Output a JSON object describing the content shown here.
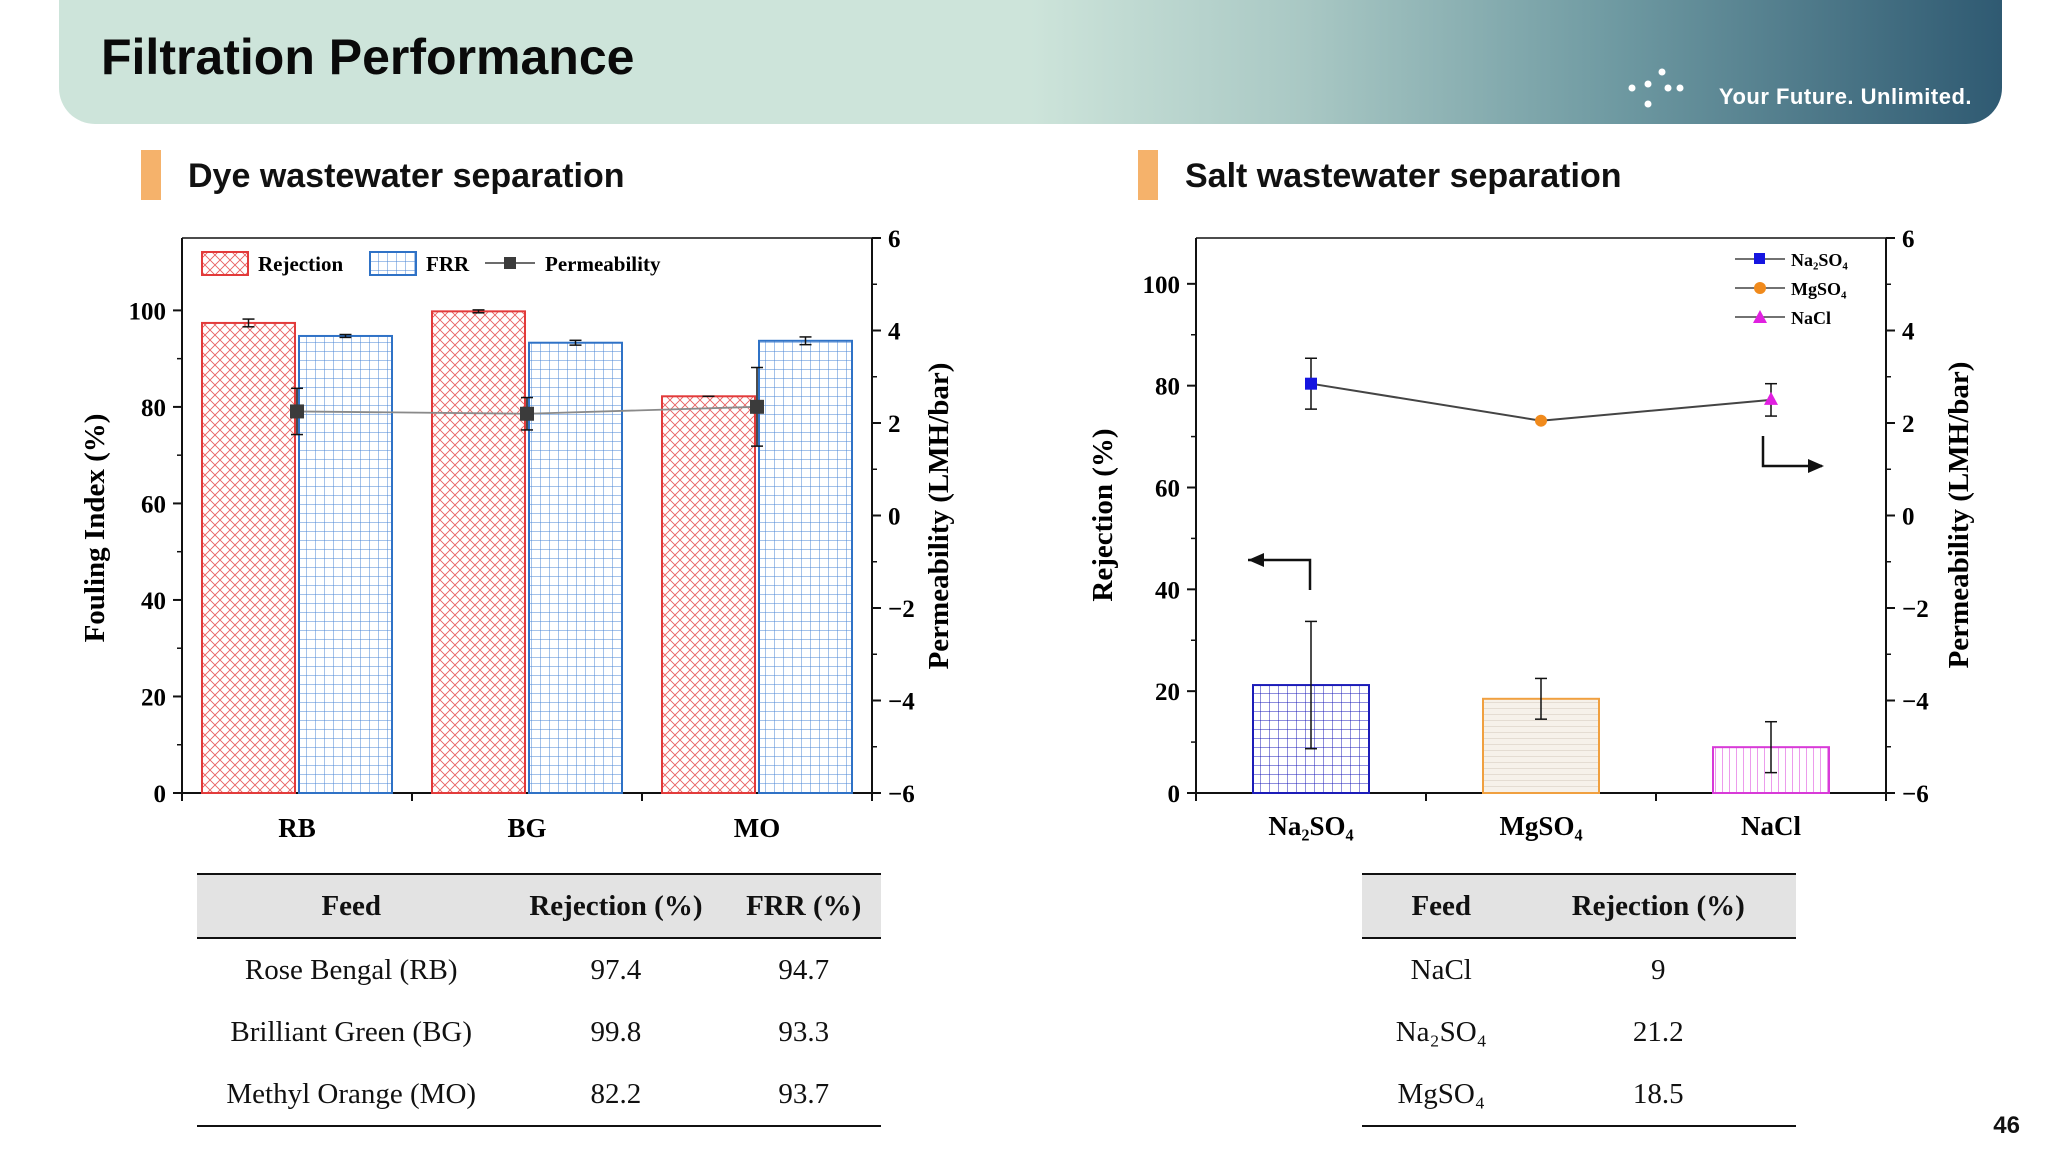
{
  "page": {
    "title": "Filtration Performance",
    "brand": "Your Future. Unlimited.",
    "page_number": "46"
  },
  "left_section": {
    "title": "Dye wastewater separation"
  },
  "right_section": {
    "title": "Salt wastewater separation"
  },
  "chart_data": [
    {
      "type": "bar",
      "title": "Dye wastewater separation",
      "categories": [
        "RB",
        "BG",
        "MO"
      ],
      "ylabel": "Fouling Index (%)",
      "y2label": "Permeability (LMH/bar)",
      "ylim": [
        0,
        115
      ],
      "y2lim": [
        -6,
        6
      ],
      "yticks": [
        "0",
        "20",
        "40",
        "60",
        "80",
        "100"
      ],
      "y2ticks": [
        "6",
        "4",
        "2",
        "0",
        "−2",
        "−4",
        "−6"
      ],
      "legend": [
        "Rejection",
        "FRR",
        "Permeability"
      ],
      "series": [
        {
          "name": "Rejection",
          "values": [
            97.4,
            99.8,
            82.2
          ],
          "errors": [
            0.8,
            0.3,
            0
          ],
          "color": "#e23b3b"
        },
        {
          "name": "FRR",
          "values": [
            94.7,
            93.3,
            93.7
          ],
          "errors": [
            0.3,
            0.5,
            0.8
          ],
          "color": "#2f72c6"
        },
        {
          "name": "Permeability",
          "type": "line",
          "axis": "y2",
          "values": [
            2.25,
            2.2,
            2.35
          ],
          "errors": [
            0.5,
            0.35,
            0.85
          ],
          "color": "#3b3b3b"
        }
      ]
    },
    {
      "type": "bar",
      "title": "Salt wastewater separation",
      "categories": [
        "Na₂SO₄",
        "MgSO₄",
        "NaCl"
      ],
      "ylabel": "Rejection (%)",
      "y2label": "Permeability (LMH/bar)",
      "ylim": [
        0,
        109
      ],
      "y2lim": [
        -6,
        6
      ],
      "yticks": [
        "0",
        "20",
        "40",
        "60",
        "80",
        "100"
      ],
      "y2ticks": [
        "6",
        "4",
        "2",
        "0",
        "−2",
        "−4",
        "−6"
      ],
      "legend": [
        "Na₂SO₄",
        "MgSO₄",
        "NaCl"
      ],
      "series": [
        {
          "name": "Rejection",
          "values": [
            21.2,
            18.5,
            9
          ],
          "errors": [
            12.5,
            4,
            5
          ],
          "colors": [
            "#1c1cb8",
            "#f0a040",
            "#d83ad8"
          ]
        },
        {
          "name": "Permeability",
          "type": "line",
          "axis": "y2",
          "values": [
            2.85,
            2.05,
            2.5
          ],
          "errors": [
            0.55,
            0,
            0.35
          ],
          "colors": [
            "#1515e0",
            "#f08a1c",
            "#e020e0"
          ]
        }
      ]
    }
  ],
  "left_table": {
    "headers": [
      "Feed",
      "Rejection (%)",
      "FRR (%)"
    ],
    "rows": [
      [
        "Rose Bengal (RB)",
        "97.4",
        "94.7"
      ],
      [
        "Brilliant Green (BG)",
        "99.8",
        "93.3"
      ],
      [
        "Methyl Orange (MO)",
        "82.2",
        "93.7"
      ]
    ]
  },
  "right_table": {
    "headers": [
      "Feed",
      "Rejection (%)"
    ],
    "rows": [
      [
        "NaCl",
        "9"
      ],
      [
        "Na₂SO₄",
        "21.2"
      ],
      [
        "MgSO₄",
        "18.5"
      ]
    ]
  }
}
